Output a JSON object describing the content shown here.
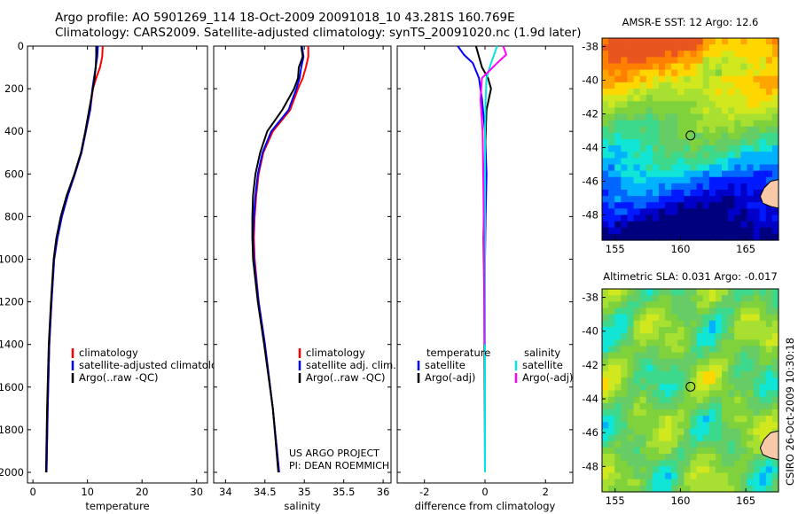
{
  "header": {
    "line1": "Argo profile: AO 5901269_114 18-Oct-2009 20091018_10 43.281S 160.769E",
    "line2": "Climatology: CARS2009. Satellite-adjusted climatology: synTS_20091020.nc (1.9d later)"
  },
  "colors": {
    "climatology": "#ff0000",
    "satellite": "#0000ff",
    "argo": "#000000",
    "sat_salinity": "#00e5e5",
    "argo_salinity_diff": "#ff00ff"
  },
  "footer": {
    "project": "US ARGO PROJECT",
    "pi": "PI: DEAN ROEMMICH",
    "credit": "CSIRO 26-Oct-2009 10:30:18"
  },
  "chart_data": [
    {
      "type": "line",
      "title": "",
      "xlabel": "temperature",
      "ylabel": "",
      "xlim": [
        -1,
        32
      ],
      "ylim": [
        2050,
        0
      ],
      "xticks": [
        "0",
        "10",
        "20",
        "30"
      ],
      "xtick_values": [
        0,
        10,
        20,
        30
      ],
      "yticks": [
        "0",
        "200",
        "400",
        "600",
        "800",
        "1000",
        "1200",
        "1400",
        "1600",
        "1800",
        "2000"
      ],
      "ytick_values": [
        0,
        200,
        400,
        600,
        800,
        1000,
        1200,
        1400,
        1600,
        1800,
        2000
      ],
      "legend": [
        "climatology",
        "satellite-adjusted climatology",
        "Argo(..raw -QC)"
      ],
      "series": [
        {
          "name": "climatology",
          "color": "#ff0000",
          "x": [
            12.8,
            12.7,
            12.3,
            11.6,
            11.0,
            10.5,
            9.7,
            8.9,
            7.7,
            6.4,
            5.3,
            4.5,
            3.9,
            3.4,
            3.0,
            2.7,
            2.5
          ],
          "y": [
            0,
            50,
            100,
            150,
            200,
            300,
            400,
            500,
            600,
            700,
            800,
            900,
            1000,
            1200,
            1400,
            1700,
            2000
          ]
        },
        {
          "name": "satellite-adjusted climatology",
          "color": "#0000ff",
          "x": [
            11.9,
            11.8,
            11.5,
            11.2,
            10.9,
            10.5,
            9.7,
            8.9,
            7.7,
            6.4,
            5.3,
            4.5,
            3.9,
            3.4,
            3.0,
            2.7,
            2.5
          ],
          "y": [
            0,
            50,
            100,
            150,
            200,
            300,
            400,
            500,
            600,
            700,
            800,
            900,
            1000,
            1200,
            1400,
            1700,
            2000
          ]
        },
        {
          "name": "Argo(..raw -QC)",
          "color": "#000000",
          "x": [
            11.6,
            11.6,
            11.5,
            11.3,
            11.0,
            10.3,
            9.6,
            8.8,
            7.6,
            6.2,
            5.1,
            4.3,
            3.8,
            3.3,
            2.9,
            2.6,
            2.4
          ],
          "y": [
            0,
            50,
            100,
            150,
            200,
            300,
            400,
            500,
            600,
            700,
            800,
            900,
            1000,
            1200,
            1400,
            1700,
            2000
          ]
        }
      ]
    },
    {
      "type": "line",
      "title": "",
      "xlabel": "salinity",
      "ylabel": "",
      "xlim": [
        33.85,
        36.1
      ],
      "ylim": [
        2050,
        0
      ],
      "xticks": [
        "34",
        "34.5",
        "35",
        "35.5",
        "36"
      ],
      "xtick_values": [
        34,
        34.5,
        35,
        35.5,
        36
      ],
      "legend": [
        "climatology",
        "satellite adj. clim.",
        "Argo(..raw -QC)"
      ],
      "series": [
        {
          "name": "climatology",
          "color": "#ff0000",
          "x": [
            35.05,
            35.05,
            35.02,
            34.98,
            34.92,
            34.82,
            34.6,
            34.48,
            34.42,
            34.39,
            34.37,
            34.36,
            34.37,
            34.42,
            34.5,
            34.6,
            34.68
          ],
          "y": [
            0,
            50,
            100,
            150,
            200,
            300,
            400,
            500,
            600,
            700,
            800,
            900,
            1000,
            1200,
            1400,
            1700,
            2000
          ]
        },
        {
          "name": "satellite adj. clim.",
          "color": "#0000ff",
          "x": [
            34.97,
            34.99,
            34.96,
            34.94,
            34.9,
            34.8,
            34.58,
            34.47,
            34.41,
            34.38,
            34.36,
            34.35,
            34.36,
            34.42,
            34.5,
            34.6,
            34.68
          ],
          "y": [
            0,
            50,
            100,
            150,
            200,
            300,
            400,
            500,
            600,
            700,
            800,
            900,
            1000,
            1200,
            1400,
            1700,
            2000
          ]
        },
        {
          "name": "Argo(..raw -QC)",
          "color": "#000000",
          "x": [
            34.96,
            34.98,
            34.93,
            34.92,
            34.87,
            34.72,
            34.53,
            34.44,
            34.38,
            34.35,
            34.34,
            34.34,
            34.35,
            34.41,
            34.49,
            34.6,
            34.67
          ],
          "y": [
            0,
            50,
            100,
            150,
            200,
            300,
            400,
            500,
            600,
            700,
            800,
            900,
            1000,
            1200,
            1400,
            1700,
            2000
          ]
        }
      ]
    },
    {
      "type": "line",
      "title": "",
      "xlabel": "difference from climatology",
      "ylabel": "",
      "xlim": [
        -2.9,
        2.9
      ],
      "ylim": [
        2050,
        0
      ],
      "xticks": [
        "-2",
        "0",
        "2"
      ],
      "xtick_values": [
        -2,
        0,
        2
      ],
      "legend": [
        "temperature",
        "satellite",
        "Argo(-adj)",
        "salinity",
        "satellite",
        "Argo(-adj)"
      ],
      "series": [
        {
          "name": "temperature satellite",
          "color": "#0000ff",
          "x": [
            -0.9,
            -0.7,
            -0.4,
            -0.2,
            -0.1,
            0.0,
            0.05,
            0.02,
            0.0,
            0.0,
            0.0
          ],
          "y": [
            0,
            40,
            80,
            150,
            250,
            400,
            600,
            800,
            1000,
            1400,
            2000
          ]
        },
        {
          "name": "temperature Argo(-adj)",
          "color": "#000000",
          "x": [
            -0.3,
            -0.2,
            -0.1,
            0.1,
            0.2,
            0.05,
            0.0,
            -0.03,
            -0.05,
            -0.02,
            0.0
          ],
          "y": [
            0,
            50,
            100,
            150,
            200,
            300,
            500,
            700,
            900,
            1200,
            2000
          ]
        },
        {
          "name": "salinity satellite",
          "color": "#00e5e5",
          "x": [
            0.4,
            0.2,
            0.05,
            0.02,
            0.0,
            0.0,
            0.0,
            0.0,
            0.0
          ],
          "y": [
            0,
            80,
            150,
            250,
            400,
            700,
            1000,
            1400,
            2000
          ]
        },
        {
          "name": "salinity Argo(-adj)",
          "color": "#ff00ff",
          "x": [
            0.6,
            0.7,
            0.4,
            -0.1,
            -0.15,
            -0.08,
            -0.05,
            -0.03,
            -0.02
          ],
          "y": [
            0,
            40,
            80,
            150,
            250,
            400,
            700,
            1000,
            1400
          ]
        }
      ]
    },
    {
      "type": "heatmap",
      "title": "AMSR-E SST: 12 Argo: 12.6",
      "xlabel": "",
      "ylabel": "",
      "xlim": [
        154,
        167.5
      ],
      "ylim": [
        -49.5,
        -37.5
      ],
      "xticks": [
        "155",
        "160",
        "165"
      ],
      "xtick_values": [
        155,
        160,
        165
      ],
      "yticks": [
        "-38",
        "-40",
        "-42",
        "-44",
        "-46",
        "-48"
      ],
      "ytick_values": [
        -38,
        -40,
        -42,
        -44,
        -46,
        -48
      ],
      "argo_position": {
        "lon": 160.769,
        "lat": -43.281
      }
    },
    {
      "type": "heatmap",
      "title": "Altimetric SLA: 0.031 Argo: -0.017",
      "xlabel": "",
      "ylabel": "",
      "xlim": [
        154,
        167.5
      ],
      "ylim": [
        -49.5,
        -37.5
      ],
      "xticks": [
        "155",
        "160",
        "165"
      ],
      "xtick_values": [
        155,
        160,
        165
      ],
      "yticks": [
        "-38",
        "-40",
        "-42",
        "-44",
        "-46",
        "-48"
      ],
      "ytick_values": [
        -38,
        -40,
        -42,
        -44,
        -46,
        -48
      ],
      "argo_position": {
        "lon": 160.769,
        "lat": -43.281
      }
    }
  ]
}
